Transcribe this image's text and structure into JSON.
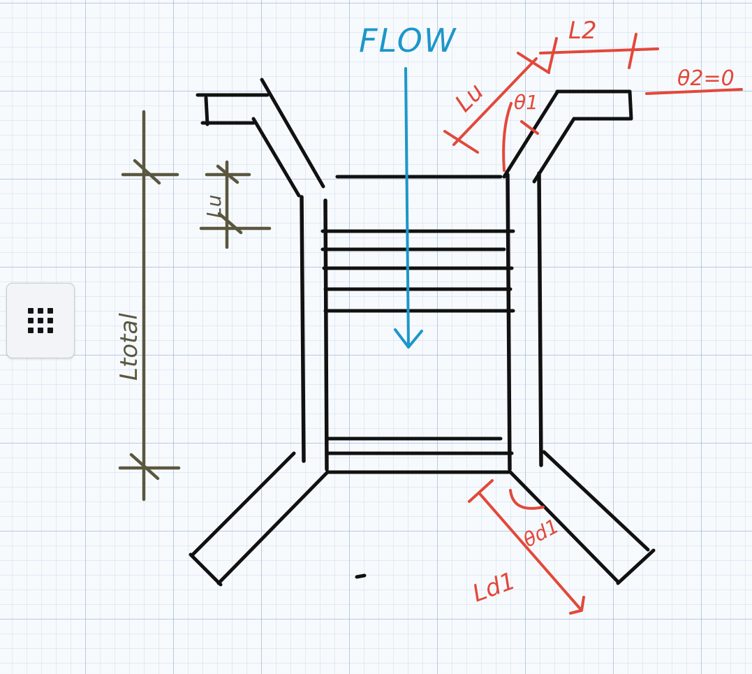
{
  "diagram": {
    "flow_label": "FLOW",
    "lu_label": "Lu",
    "theta1_label": "θ1",
    "l2_label": "L2",
    "theta2_label": "θ2=0",
    "lu_small_label": "Lu",
    "ltotal_label": "Ltotal",
    "theta_d1_label": "θd1",
    "ld1_label": "Ld1"
  },
  "colors": {
    "structure": "#111111",
    "dimension_olive": "#5a573f",
    "annotation_red": "#e2483a",
    "flow_blue": "#1c97c9",
    "grid_line": "#96afcd"
  },
  "toolbar": {
    "grid_button_icon": "grid-dots-icon"
  }
}
